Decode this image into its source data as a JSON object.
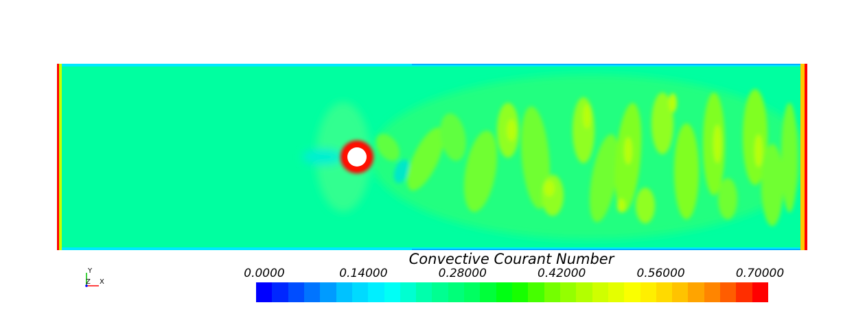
{
  "plot": {
    "title": "Convective Courant Number",
    "scalar_range": [
      0.0,
      0.7
    ],
    "tick_labels": [
      "0.0000",
      "0.14000",
      "0.28000",
      "0.42000",
      "0.56000",
      "0.70000"
    ],
    "num_color_bands": 32,
    "colormap": [
      "#0000ff",
      "#0064ff",
      "#00c8ff",
      "#00ffff",
      "#00ffa0",
      "#00ff64",
      "#00ff00",
      "#78ff00",
      "#c8ff00",
      "#ffff00",
      "#ffc800",
      "#ff7800",
      "#ff0000"
    ],
    "background_color": "#00ffa0",
    "obstacle_color": "#ffffff"
  },
  "orientation_axes": {
    "labels": [
      "Y",
      "Z",
      "X"
    ],
    "colors": {
      "x": "#ff0000",
      "y": "#00c000",
      "z": "#0000ff"
    }
  }
}
